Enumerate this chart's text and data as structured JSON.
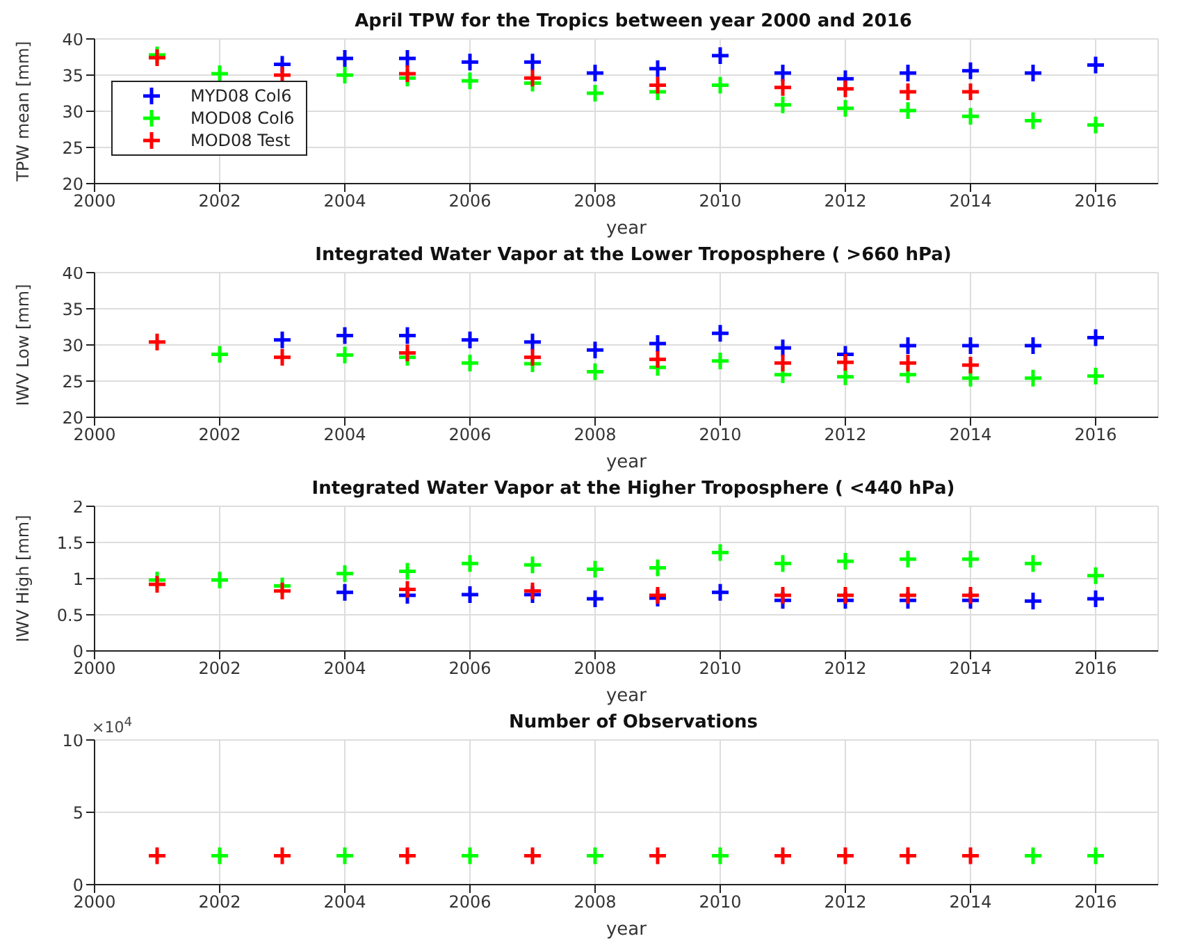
{
  "chart_data": [
    {
      "type": "scatter",
      "title": "April TPW  for the Tropics  between year 2000 and 2016",
      "xlabel": "year",
      "ylabel": "TPW mean [mm]",
      "x": [
        2001,
        2002,
        2003,
        2004,
        2005,
        2006,
        2007,
        2008,
        2009,
        2010,
        2011,
        2012,
        2013,
        2014,
        2015,
        2016
      ],
      "xlim": [
        2000,
        2017
      ],
      "xticks": [
        2000,
        2002,
        2004,
        2006,
        2008,
        2010,
        2012,
        2014,
        2016
      ],
      "ylim": [
        20,
        40
      ],
      "yticks": [
        20,
        25,
        30,
        35,
        40
      ],
      "grid": true,
      "marker": "cross",
      "legend": "left",
      "series": [
        {
          "name": "MYD08 Col6",
          "color": "#0000ff",
          "values": [
            null,
            null,
            36.5,
            37.3,
            37.3,
            36.8,
            36.8,
            35.3,
            35.9,
            37.7,
            35.3,
            34.5,
            35.3,
            35.6,
            35.3,
            36.4
          ]
        },
        {
          "name": "MOD08 Col6",
          "color": "#00ff00",
          "values": [
            37.8,
            35.2,
            null,
            35.0,
            34.6,
            34.2,
            33.9,
            32.5,
            32.7,
            33.6,
            30.9,
            30.4,
            30.1,
            29.3,
            28.7,
            28.1
          ]
        },
        {
          "name": "MOD08 Test",
          "color": "#ff0000",
          "values": [
            37.4,
            null,
            35.0,
            null,
            35.2,
            null,
            34.6,
            null,
            33.6,
            null,
            33.3,
            33.1,
            32.7,
            32.7,
            null,
            null
          ]
        }
      ]
    },
    {
      "type": "scatter",
      "title": "Integrated Water Vapor at the Lower Troposphere ( >660 hPa)",
      "xlabel": "year",
      "ylabel": "IWV Low [mm]",
      "x": [
        2001,
        2002,
        2003,
        2004,
        2005,
        2006,
        2007,
        2008,
        2009,
        2010,
        2011,
        2012,
        2013,
        2014,
        2015,
        2016
      ],
      "xlim": [
        2000,
        2017
      ],
      "xticks": [
        2000,
        2002,
        2004,
        2006,
        2008,
        2010,
        2012,
        2014,
        2016
      ],
      "ylim": [
        20,
        40
      ],
      "yticks": [
        20,
        25,
        30,
        35,
        40
      ],
      "grid": true,
      "marker": "cross",
      "series": [
        {
          "color": "#0000ff",
          "values": [
            null,
            null,
            30.7,
            31.3,
            31.3,
            30.7,
            30.4,
            29.3,
            30.2,
            31.6,
            29.6,
            28.7,
            29.9,
            29.9,
            29.9,
            31.0
          ]
        },
        {
          "color": "#00ff00",
          "values": [
            null,
            28.7,
            null,
            28.6,
            28.3,
            27.5,
            27.4,
            26.3,
            26.9,
            27.8,
            25.9,
            25.6,
            25.9,
            25.4,
            25.4,
            25.7
          ]
        },
        {
          "color": "#ff0000",
          "values": [
            30.4,
            null,
            28.3,
            null,
            28.9,
            null,
            28.3,
            null,
            28.0,
            null,
            27.5,
            27.6,
            27.5,
            27.2,
            null,
            null
          ]
        }
      ]
    },
    {
      "type": "scatter",
      "title": "Integrated Water Vapor at the Higher Troposphere ( <440 hPa)",
      "xlabel": "year",
      "ylabel": "IWV High [mm]",
      "x": [
        2001,
        2002,
        2003,
        2004,
        2005,
        2006,
        2007,
        2008,
        2009,
        2010,
        2011,
        2012,
        2013,
        2014,
        2015,
        2016
      ],
      "xlim": [
        2000,
        2017
      ],
      "xticks": [
        2000,
        2002,
        2004,
        2006,
        2008,
        2010,
        2012,
        2014,
        2016
      ],
      "ylim": [
        0,
        2
      ],
      "yticks": [
        0,
        0.5,
        1,
        1.5,
        2
      ],
      "grid": true,
      "marker": "cross",
      "series": [
        {
          "color": "#0000ff",
          "values": [
            null,
            null,
            null,
            0.81,
            0.77,
            0.78,
            0.78,
            0.72,
            0.73,
            0.81,
            0.7,
            0.7,
            0.7,
            0.7,
            0.69,
            0.72
          ]
        },
        {
          "color": "#00ff00",
          "values": [
            0.98,
            0.98,
            0.9,
            1.07,
            1.1,
            1.21,
            1.19,
            1.13,
            1.15,
            1.36,
            1.21,
            1.24,
            1.27,
            1.27,
            1.21,
            1.04
          ]
        },
        {
          "color": "#ff0000",
          "values": [
            0.92,
            null,
            0.83,
            null,
            0.85,
            null,
            0.83,
            null,
            0.77,
            null,
            0.77,
            0.77,
            0.77,
            0.77,
            null,
            null
          ]
        }
      ]
    },
    {
      "type": "scatter",
      "title": "Number of Observations",
      "xlabel": "year",
      "x": [
        2001,
        2002,
        2003,
        2004,
        2005,
        2006,
        2007,
        2008,
        2009,
        2010,
        2011,
        2012,
        2013,
        2014,
        2015,
        2016
      ],
      "xlim": [
        2000,
        2017
      ],
      "xticks": [
        2000,
        2002,
        2004,
        2006,
        2008,
        2010,
        2012,
        2014,
        2016
      ],
      "ylim": [
        0,
        10
      ],
      "yticks": [
        0,
        5,
        10
      ],
      "grid": true,
      "marker": "cross",
      "annotations": [
        "×10$^{4}$"
      ],
      "series": [
        {
          "color": "#00ff00",
          "values": [
            null,
            2,
            null,
            2,
            null,
            2,
            null,
            2,
            null,
            2,
            null,
            null,
            null,
            null,
            2,
            2
          ]
        },
        {
          "color": "#ff0000",
          "values": [
            2,
            null,
            2,
            null,
            2,
            null,
            2,
            null,
            2,
            null,
            2,
            2,
            2,
            2,
            null,
            null
          ]
        }
      ]
    }
  ]
}
